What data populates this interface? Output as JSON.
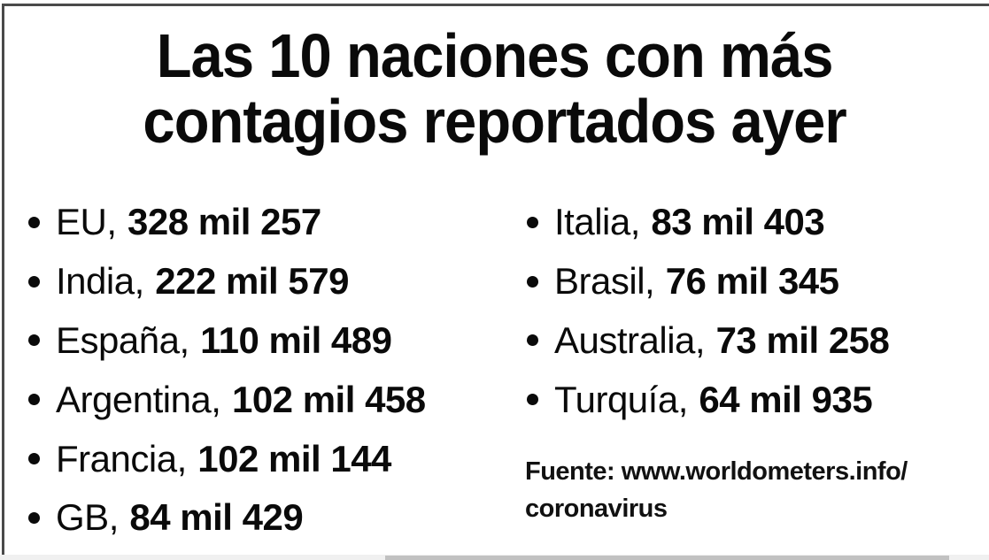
{
  "title": {
    "line1": "Las 10 naciones con más",
    "line2": "contagios reportados ayer"
  },
  "list_left": [
    {
      "country": "EU",
      "value": "328 mil 257"
    },
    {
      "country": "India",
      "value": "222 mil 579"
    },
    {
      "country": "España",
      "value": "110 mil 489"
    },
    {
      "country": "Argentina",
      "value": "102 mil 458"
    },
    {
      "country": "Francia",
      "value": "102 mil 144"
    },
    {
      "country": "GB",
      "value": "84 mil 429"
    }
  ],
  "list_right": [
    {
      "country": "Italia",
      "value": "83 mil 403"
    },
    {
      "country": "Brasil",
      "value": "76 mil 345"
    },
    {
      "country": "Australia",
      "value": "73 mil 258"
    },
    {
      "country": "Turquía",
      "value": "64 mil 935"
    }
  ],
  "separator": ",",
  "source": {
    "line1": "Fuente: www.worldometers.info/",
    "line2": "coronavirus"
  },
  "colors": {
    "text": "#0a0a0a",
    "background": "#ffffff",
    "border": "#4a4a4a",
    "scrollbar_track": "#f0f0f0",
    "scrollbar_thumb": "#c1c1c1"
  }
}
